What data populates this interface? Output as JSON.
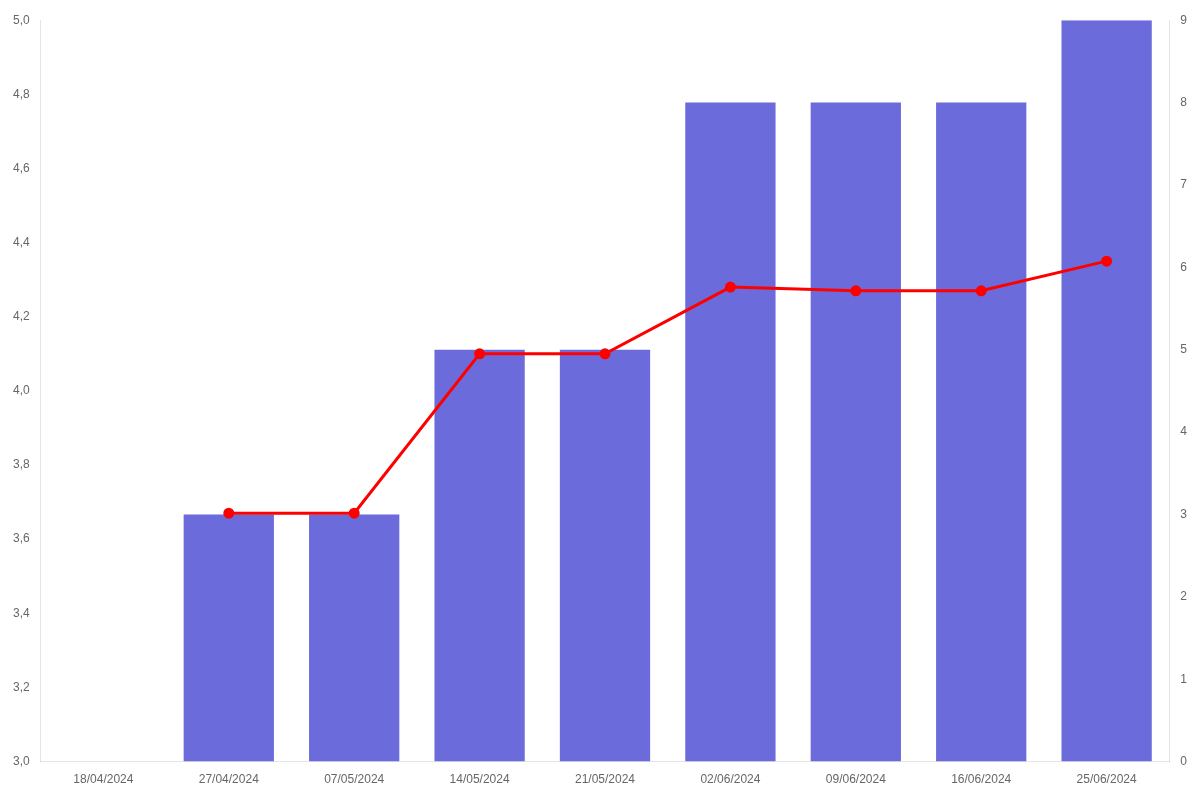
{
  "chart_data": {
    "type": "bar",
    "categories": [
      "18/04/2024",
      "27/04/2024",
      "07/05/2024",
      "14/05/2024",
      "21/05/2024",
      "02/06/2024",
      "09/06/2024",
      "16/06/2024",
      "25/06/2024"
    ],
    "series": [
      {
        "type": "line",
        "color": "#ff0000",
        "marker": "circle",
        "values": [
          null,
          3.67,
          3.67,
          4.1,
          4.1,
          4.28,
          4.27,
          4.27,
          4.35
        ]
      },
      {
        "type": "bar",
        "color": "#6B6BDB",
        "axis": "y2",
        "values": [
          0,
          3,
          3,
          5,
          5,
          8,
          8,
          8,
          9
        ]
      }
    ],
    "ylim": [
      3.0,
      5.0
    ],
    "yticks": [
      {
        "value": 3.0,
        "label": "3,0"
      },
      {
        "value": 3.2,
        "label": "3,2"
      },
      {
        "value": 3.4,
        "label": "3,4"
      },
      {
        "value": 3.6,
        "label": "3,6"
      },
      {
        "value": 3.8,
        "label": "3,8"
      },
      {
        "value": 4.0,
        "label": "4,0"
      },
      {
        "value": 4.2,
        "label": "4,2"
      },
      {
        "value": 4.4,
        "label": "4,4"
      },
      {
        "value": 4.6,
        "label": "4,6"
      },
      {
        "value": 4.8,
        "label": "4,8"
      },
      {
        "value": 5.0,
        "label": "5,0"
      }
    ],
    "y2lim": [
      0,
      9
    ],
    "y2ticks": [
      0,
      1,
      2,
      3,
      4,
      5,
      6,
      7,
      8,
      9
    ],
    "grid": false
  }
}
